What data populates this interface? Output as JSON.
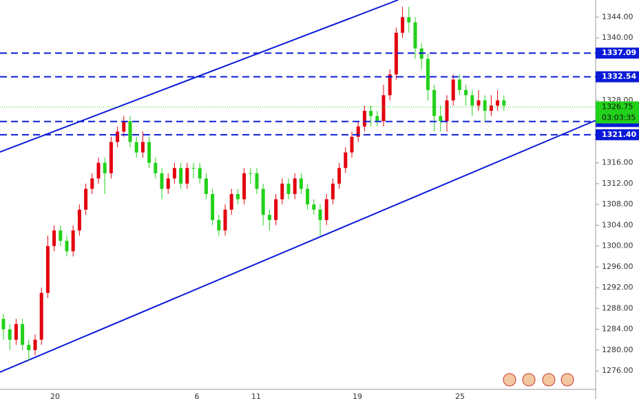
{
  "chart_data": {
    "type": "candlestick",
    "ohlc": [
      [
        1286,
        1287,
        1282,
        1284
      ],
      [
        1284,
        1285,
        1280,
        1282
      ],
      [
        1282,
        1286,
        1281,
        1285
      ],
      [
        1285,
        1286,
        1280,
        1281
      ],
      [
        1281,
        1282,
        1278,
        1280
      ],
      [
        1280,
        1283,
        1279,
        1282
      ],
      [
        1282,
        1292,
        1281,
        1291
      ],
      [
        1291,
        1302,
        1290,
        1300
      ],
      [
        1300,
        1304,
        1299,
        1303
      ],
      [
        1303,
        1304,
        1300,
        1301
      ],
      [
        1301,
        1302,
        1298,
        1299
      ],
      [
        1299,
        1304,
        1298,
        1303
      ],
      [
        1303,
        1308,
        1302,
        1307
      ],
      [
        1307,
        1312,
        1306,
        1311
      ],
      [
        1311,
        1314,
        1310,
        1313
      ],
      [
        1313,
        1317,
        1312,
        1316
      ],
      [
        1316,
        1317,
        1310,
        1314
      ],
      [
        1314,
        1321,
        1313,
        1320
      ],
      [
        1320,
        1323,
        1319,
        1322
      ],
      [
        1322,
        1325,
        1321,
        1324
      ],
      [
        1324,
        1325,
        1319,
        1320
      ],
      [
        1320,
        1321,
        1317,
        1318
      ],
      [
        1318,
        1322,
        1317,
        1320
      ],
      [
        1320,
        1321,
        1315,
        1316
      ],
      [
        1316,
        1317,
        1313,
        1314
      ],
      [
        1314,
        1315,
        1309,
        1311
      ],
      [
        1311,
        1314,
        1310,
        1313
      ],
      [
        1313,
        1316,
        1312,
        1315
      ],
      [
        1315,
        1316,
        1311,
        1312
      ],
      [
        1312,
        1316,
        1311,
        1315
      ],
      [
        1315,
        1316,
        1313,
        1315
      ],
      [
        1315,
        1316,
        1312,
        1313
      ],
      [
        1313,
        1314,
        1309,
        1310
      ],
      [
        1310,
        1311,
        1304,
        1305
      ],
      [
        1305,
        1306,
        1302,
        1303
      ],
      [
        1303,
        1308,
        1302,
        1307
      ],
      [
        1307,
        1311,
        1306,
        1310
      ],
      [
        1310,
        1311,
        1308,
        1309
      ],
      [
        1309,
        1315,
        1308,
        1314
      ],
      [
        1314,
        1315,
        1312,
        1314
      ],
      [
        1314,
        1315,
        1310,
        1311
      ],
      [
        1311,
        1312,
        1304,
        1306
      ],
      [
        1306,
        1307,
        1303,
        1305
      ],
      [
        1305,
        1310,
        1304,
        1309
      ],
      [
        1309,
        1313,
        1308,
        1312
      ],
      [
        1312,
        1313,
        1309,
        1310
      ],
      [
        1310,
        1314,
        1309,
        1313
      ],
      [
        1313,
        1314,
        1310,
        1311
      ],
      [
        1311,
        1312,
        1307,
        1308
      ],
      [
        1308,
        1309,
        1306,
        1307
      ],
      [
        1307,
        1308,
        1302,
        1305
      ],
      [
        1305,
        1310,
        1304,
        1309
      ],
      [
        1309,
        1313,
        1308,
        1312
      ],
      [
        1312,
        1316,
        1311,
        1315
      ],
      [
        1315,
        1319,
        1314,
        1318
      ],
      [
        1318,
        1322,
        1317,
        1321
      ],
      [
        1321,
        1324,
        1320,
        1323
      ],
      [
        1323,
        1327,
        1322,
        1326
      ],
      [
        1326,
        1327,
        1323,
        1325
      ],
      [
        1325,
        1326,
        1323,
        1324
      ],
      [
        1324,
        1331,
        1323,
        1329
      ],
      [
        1329,
        1334,
        1328,
        1333
      ],
      [
        1333,
        1342,
        1332,
        1341
      ],
      [
        1341,
        1346,
        1340,
        1344
      ],
      [
        1344,
        1346,
        1341,
        1343
      ],
      [
        1343,
        1344,
        1336,
        1338
      ],
      [
        1338,
        1339,
        1334,
        1336
      ],
      [
        1336,
        1337,
        1328,
        1330
      ],
      [
        1330,
        1331,
        1322,
        1325
      ],
      [
        1325,
        1327,
        1322,
        1324
      ],
      [
        1324,
        1329,
        1322,
        1328
      ],
      [
        1328,
        1333,
        1327,
        1332
      ],
      [
        1332,
        1333,
        1329,
        1330
      ],
      [
        1330,
        1331,
        1327,
        1329
      ],
      [
        1329,
        1330,
        1325,
        1327
      ],
      [
        1327,
        1330,
        1326,
        1328
      ],
      [
        1328,
        1329,
        1324,
        1326
      ],
      [
        1326,
        1329,
        1325,
        1327
      ],
      [
        1327,
        1330,
        1326,
        1328
      ],
      [
        1328,
        1329,
        1326,
        1327
      ]
    ],
    "up_color": "#e3000f",
    "down_color": "#22d11a",
    "ylim": [
      1270.6,
      1347.3
    ],
    "yticks": [
      {
        "value": 1276,
        "label": "1276.00"
      },
      {
        "value": 1280,
        "label": "1280.00"
      },
      {
        "value": 1284,
        "label": "1284.00"
      },
      {
        "value": 1288,
        "label": "1288.00"
      },
      {
        "value": 1292,
        "label": "1292.00"
      },
      {
        "value": 1296,
        "label": "1296.00"
      },
      {
        "value": 1300,
        "label": "1300.00"
      },
      {
        "value": 1304,
        "label": "1304.00"
      },
      {
        "value": 1308,
        "label": "1308.00"
      },
      {
        "value": 1312,
        "label": "1312.00"
      },
      {
        "value": 1316,
        "label": "1316.00"
      },
      {
        "value": 1328,
        "label": "1328.00"
      },
      {
        "value": 1340,
        "label": "1340.00"
      },
      {
        "value": 1344,
        "label": "1344.00"
      }
    ],
    "levels": [
      1337.09,
      1332.54,
      1323.94,
      {
        "value": 1321.4,
        "label": "1321.40"
      }
    ],
    "level_color": "#0a1ad6",
    "current_price": 1326.75,
    "current_color": "#22d11a",
    "countdown": "03:03:35",
    "x_labels": [
      "20",
      "6",
      "11",
      "19",
      "25"
    ]
  }
}
